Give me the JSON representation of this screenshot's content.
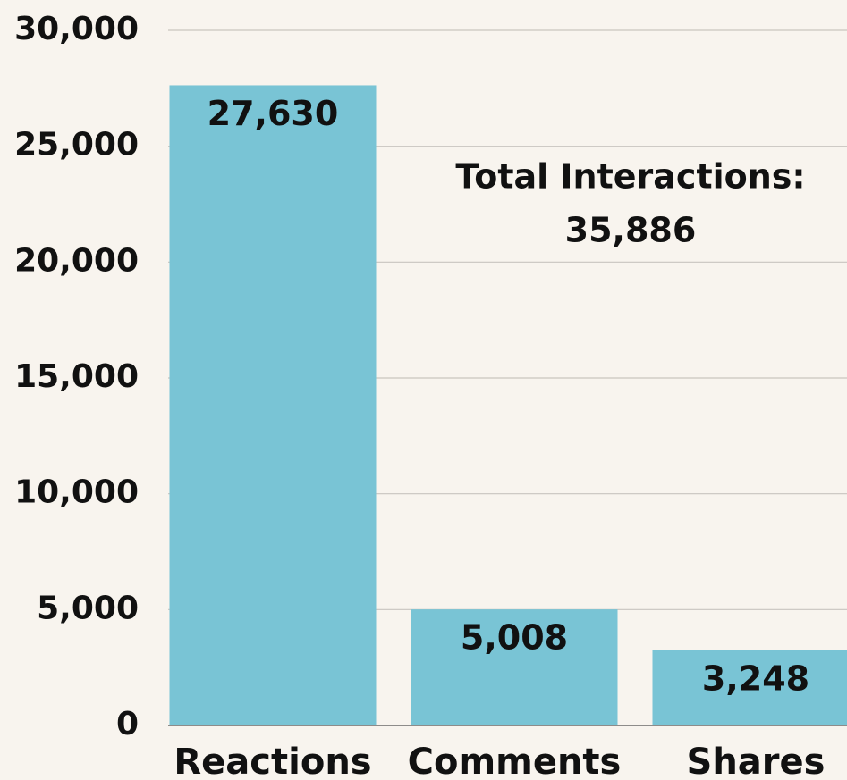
{
  "chart_data": {
    "type": "bar",
    "categories": [
      "Reactions",
      "Comments",
      "Shares"
    ],
    "values": [
      27630,
      5008,
      3248
    ],
    "value_labels": [
      "27,630",
      "5,008",
      "3,248"
    ],
    "color": "#79c4d5",
    "ylim": [
      0,
      30000
    ],
    "yticks": [
      0,
      {
        "value": 5000,
        "label": "5,000"
      },
      {
        "value": 10000,
        "label": "10,000"
      },
      {
        "value": 15000,
        "label": "15,000"
      },
      {
        "value": 20000,
        "label": "20,000"
      },
      {
        "value": 25000,
        "label": "25,000"
      },
      {
        "value": 30000,
        "label": "30,000"
      }
    ],
    "grid": true,
    "annotations": [
      "Total Interactions:",
      "35,886"
    ]
  }
}
